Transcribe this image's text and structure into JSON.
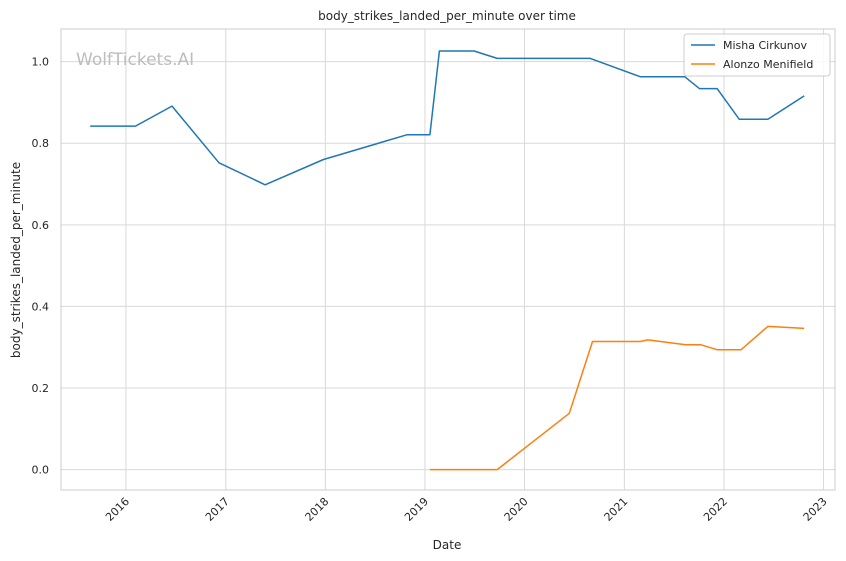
{
  "chart_data": {
    "type": "line",
    "title": "body_strikes_landed_per_minute over time",
    "xlabel": "Date",
    "ylabel": "body_strikes_landed_per_minute",
    "watermark": "WolfTickets.AI",
    "xlim": [
      "2015-05-08",
      "2023-02-12"
    ],
    "ylim": [
      -0.05,
      1.08
    ],
    "x_ticks": [
      "2016",
      "2017",
      "2018",
      "2019",
      "2020",
      "2021",
      "2022",
      "2023"
    ],
    "y_ticks": [
      "0.0",
      "0.2",
      "0.4",
      "0.6",
      "0.8",
      "1.0"
    ],
    "grid": true,
    "legend_position": "top-right",
    "series": [
      {
        "name": "Misha Cirkunov",
        "color": "#1f77b4",
        "points": [
          [
            "2015-08-23",
            0.842
          ],
          [
            "2016-02-05",
            0.842
          ],
          [
            "2016-06-18",
            0.891
          ],
          [
            "2016-12-07",
            0.752
          ],
          [
            "2017-05-25",
            0.698
          ],
          [
            "2017-12-25",
            0.76
          ],
          [
            "2018-10-28",
            0.821
          ],
          [
            "2019-01-19",
            0.821
          ],
          [
            "2019-02-23",
            1.026
          ],
          [
            "2019-06-30",
            1.026
          ],
          [
            "2019-09-23",
            1.008
          ],
          [
            "2020-08-29",
            1.008
          ],
          [
            "2021-02-28",
            0.963
          ],
          [
            "2021-08-10",
            0.963
          ],
          [
            "2021-10-03",
            0.934
          ],
          [
            "2021-12-07",
            0.934
          ],
          [
            "2022-02-26",
            0.859
          ],
          [
            "2022-06-11",
            0.859
          ],
          [
            "2022-10-22",
            0.916
          ]
        ]
      },
      {
        "name": "Alonzo Menifield",
        "color": "#ff7f0e",
        "points": [
          [
            "2019-01-19",
            0.0
          ],
          [
            "2019-09-23",
            0.0
          ],
          [
            "2020-06-13",
            0.138
          ],
          [
            "2020-09-06",
            0.314
          ],
          [
            "2021-02-28",
            0.314
          ],
          [
            "2021-03-28",
            0.318
          ],
          [
            "2021-08-14",
            0.306
          ],
          [
            "2021-10-09",
            0.306
          ],
          [
            "2021-12-07",
            0.294
          ],
          [
            "2022-03-05",
            0.294
          ],
          [
            "2022-06-11",
            0.351
          ],
          [
            "2022-10-22",
            0.346
          ]
        ]
      }
    ]
  }
}
